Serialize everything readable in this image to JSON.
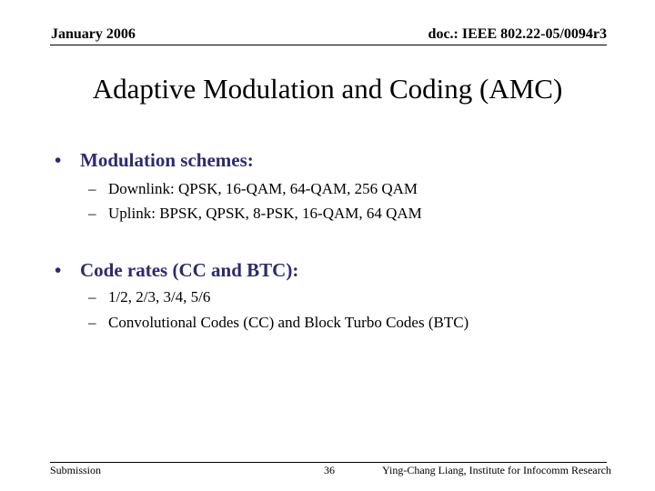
{
  "header": {
    "date": "January 2006",
    "doc_id": "doc.: IEEE 802.22-05/0094r3"
  },
  "title": "Adaptive Modulation and Coding (AMC)",
  "bullets": [
    {
      "marker": "•",
      "text": "Modulation schemes:",
      "subitems": [
        {
          "marker": "–",
          "text": "Downlink: QPSK, 16-QAM, 64-QAM, 256 QAM"
        },
        {
          "marker": "–",
          "text": "Uplink: BPSK, QPSK, 8-PSK, 16-QAM, 64 QAM"
        }
      ]
    },
    {
      "marker": "•",
      "text": "Code rates (CC and BTC):",
      "subitems": [
        {
          "marker": "–",
          "text": "1/2, 2/3, 3/4, 5/6"
        },
        {
          "marker": "–",
          "text": "Convolutional Codes (CC) and Block Turbo Codes (BTC)"
        }
      ]
    }
  ],
  "footer": {
    "left": "Submission",
    "page_number": "36",
    "author": "Ying-Chang Liang, Institute for Infocomm Research"
  },
  "colors": {
    "bullet_text": "#2b2b70",
    "text": "#000000",
    "background": "#ffffff"
  }
}
